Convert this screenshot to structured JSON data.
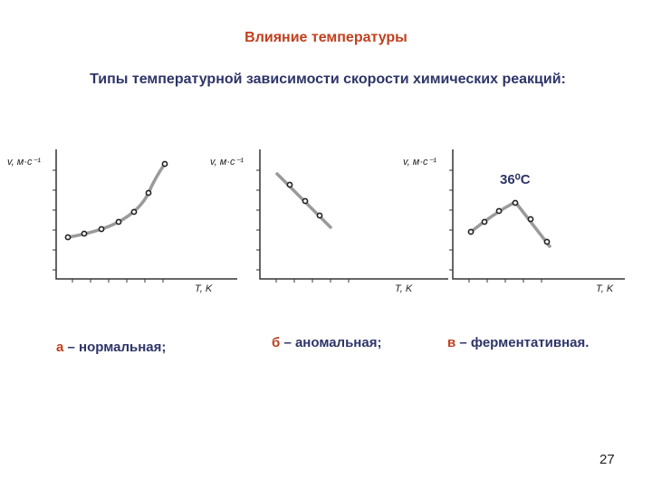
{
  "header": {
    "title": "Влияние температуры",
    "subtitle": "Типы температурной зависимости скорости химических реакций:"
  },
  "panels": [
    {
      "y_label": "v, м·с⁻¹",
      "x_label": "T, K",
      "letter": "а",
      "caption": "– нормальная;"
    },
    {
      "y_label": "v, м·с⁻¹",
      "x_label": "T, K",
      "letter": "б",
      "caption": "– аномальная;"
    },
    {
      "y_label": "v, м·с⁻¹",
      "x_label": "T, K",
      "letter": "в",
      "caption": "– ферментативная.",
      "annotation": "36⁰С"
    }
  ],
  "page_number": "27"
}
